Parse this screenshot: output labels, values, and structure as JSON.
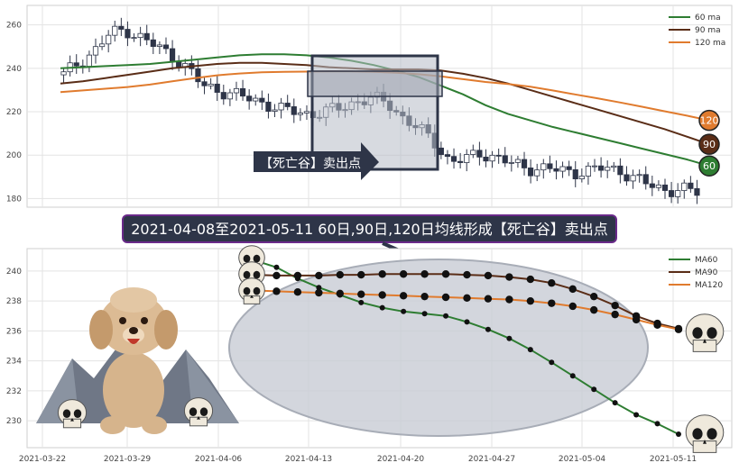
{
  "banner": {
    "main": "2021-04-08至2021-05-11 60日,90日,120日均线形成【死亡谷】卖出点",
    "arrow_label": "【死亡谷】卖出点"
  },
  "colors": {
    "ma60": "#2e7d32",
    "ma90": "#5a2d17",
    "ma120": "#e07b2e",
    "up": "#ffffff",
    "down": "#2e3548",
    "banner_bg": "#2e3548",
    "banner_border": "#6a2a8a",
    "highlight_box": "#2e3548",
    "ellipse_fill": "#c8ccd4"
  },
  "chart_data": [
    {
      "type": "candlestick",
      "y_ticks": [
        180,
        200,
        220,
        240,
        260
      ],
      "ylim": [
        176,
        269
      ],
      "grid": true,
      "legend": {
        "position": "top-right",
        "entries": [
          "60 ma",
          "90 ma",
          "120 ma"
        ]
      },
      "end_markers": [
        {
          "label": "120",
          "value": 216
        },
        {
          "label": "90",
          "value": 205
        },
        {
          "label": "60",
          "value": 195
        }
      ],
      "highlight_window": {
        "start": 2021.0408,
        "end": 2021.0511
      },
      "ohlc_points": 100,
      "ma60": [
        240,
        240.5,
        241,
        241.5,
        242,
        243,
        244,
        245,
        246,
        246.5,
        246.5,
        246,
        245,
        243.5,
        241.5,
        239,
        236,
        232,
        228,
        223,
        219,
        216,
        213,
        210.5,
        208,
        205.5,
        203,
        200.5,
        198,
        195
      ],
      "ma90": [
        233,
        234,
        235.5,
        237,
        238.5,
        240,
        241,
        242,
        242.5,
        242.5,
        242,
        241.5,
        240.5,
        240,
        239.5,
        239.5,
        239.5,
        239,
        237.5,
        235.5,
        233,
        230,
        227,
        224,
        221,
        218,
        215,
        212,
        208.5,
        205
      ],
      "ma120": [
        229,
        229.8,
        230.6,
        231.4,
        232.5,
        234,
        235.5,
        236.8,
        237.6,
        238.2,
        238.4,
        238.5,
        238.6,
        238.6,
        238.4,
        238,
        237.3,
        236.3,
        235,
        233.7,
        232.8,
        231.5,
        229.8,
        228,
        226.2,
        224.3,
        222.3,
        220.2,
        218.2,
        216
      ]
    },
    {
      "type": "line",
      "x_tick_labels": [
        "2021-03-22",
        "2021-03-29",
        "2021-04-06",
        "2021-04-13",
        "2021-04-20",
        "2021-04-27",
        "2021-05-04",
        "2021-05-11"
      ],
      "y_ticks": [
        230,
        232,
        234,
        236,
        238,
        240
      ],
      "ylim": [
        228.2,
        241.5
      ],
      "grid": true,
      "legend": {
        "position": "top-right",
        "entries": [
          "MA60",
          "MA90",
          "MA120"
        ]
      },
      "x": [
        "2021-04-08",
        "2021-04-09",
        "2021-04-12",
        "2021-04-13",
        "2021-04-14",
        "2021-04-15",
        "2021-04-16",
        "2021-04-19",
        "2021-04-20",
        "2021-04-21",
        "2021-04-22",
        "2021-04-23",
        "2021-04-26",
        "2021-04-27",
        "2021-04-28",
        "2021-04-29",
        "2021-04-30",
        "2021-05-06",
        "2021-05-07",
        "2021-05-10",
        "2021-05-11"
      ],
      "series": [
        {
          "name": "MA60",
          "values": [
            240.7,
            240.25,
            239.5,
            238.9,
            238.4,
            237.9,
            237.55,
            237.3,
            237.15,
            237.0,
            236.6,
            236.1,
            235.5,
            234.75,
            233.9,
            233.0,
            232.1,
            231.2,
            230.4,
            229.8,
            229.1
          ]
        },
        {
          "name": "MA90",
          "values": [
            239.75,
            239.7,
            239.7,
            239.7,
            239.75,
            239.75,
            239.8,
            239.8,
            239.8,
            239.8,
            239.75,
            239.7,
            239.6,
            239.45,
            239.2,
            238.8,
            238.3,
            237.7,
            237.0,
            236.5,
            236.15
          ]
        },
        {
          "name": "MA120",
          "values": [
            238.7,
            238.65,
            238.6,
            238.55,
            238.5,
            238.45,
            238.4,
            238.35,
            238.3,
            238.25,
            238.2,
            238.15,
            238.1,
            238.0,
            237.85,
            237.65,
            237.4,
            237.1,
            236.75,
            236.4,
            236.1
          ]
        }
      ]
    }
  ]
}
